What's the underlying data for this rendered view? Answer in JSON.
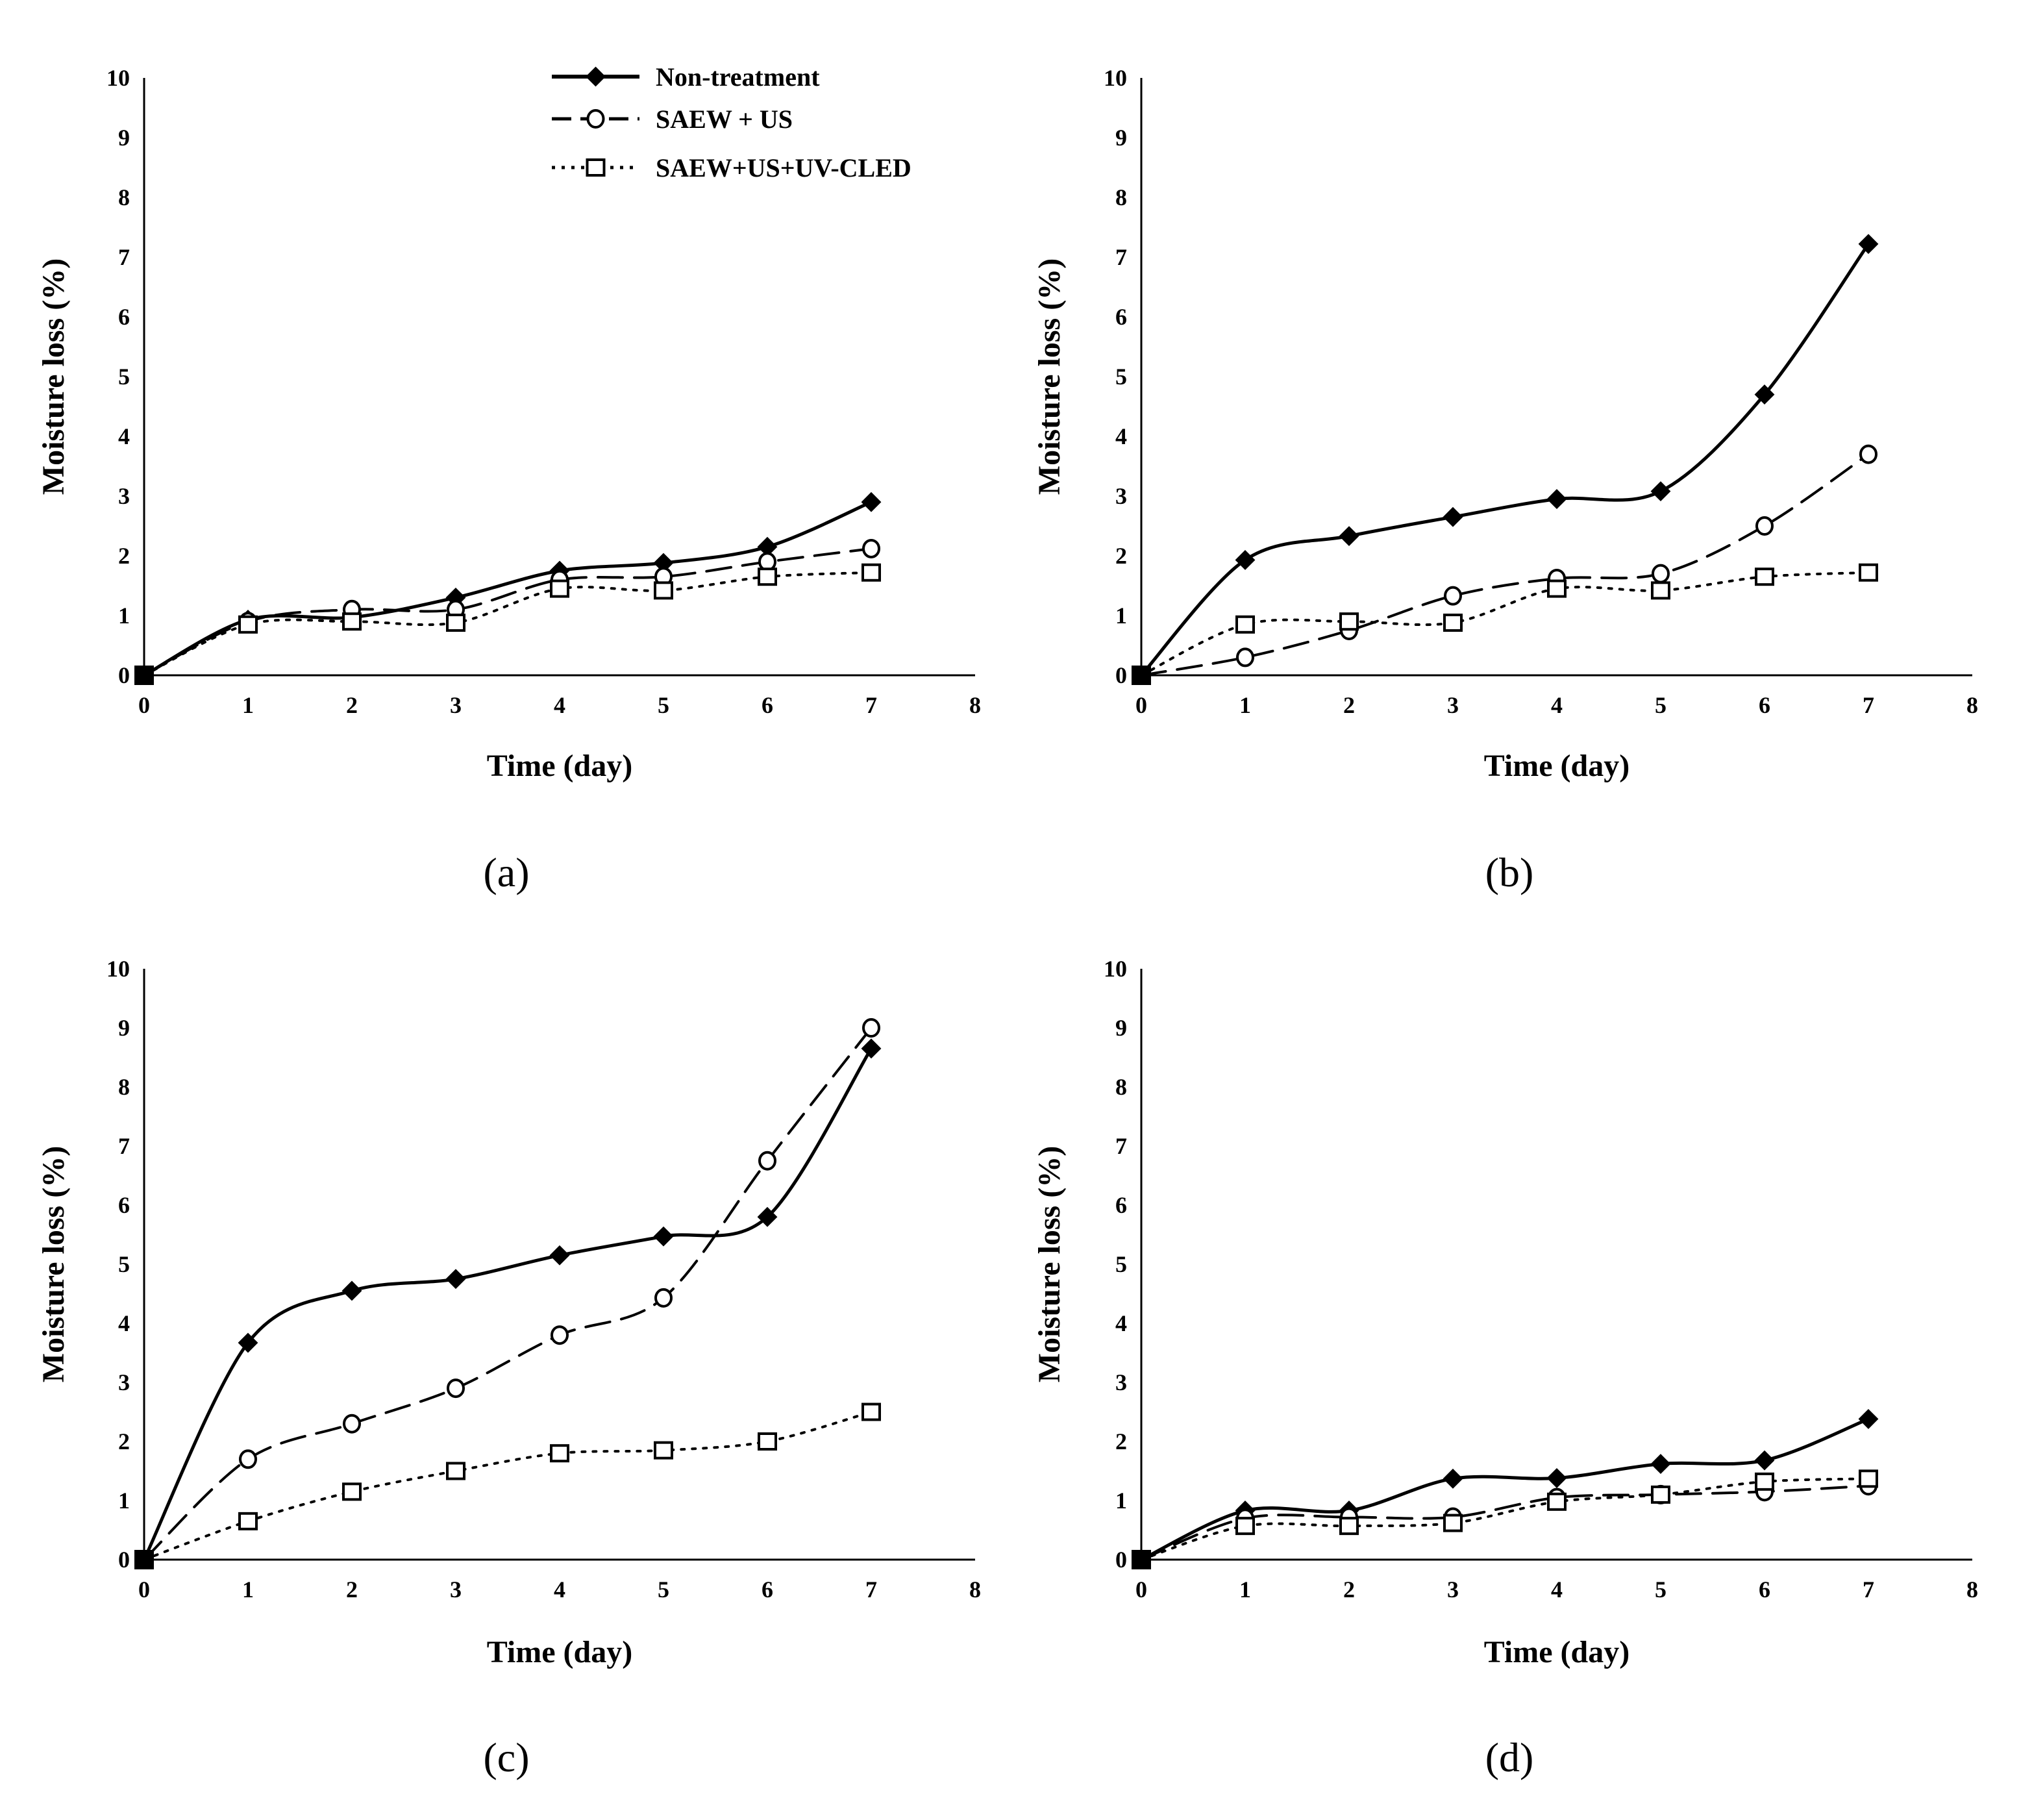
{
  "chart_data": [
    {
      "type": "line",
      "panel": "a",
      "title": "",
      "panel_label": "(a)",
      "xlabel": "Time (day)",
      "ylabel": "Moisture loss (%)",
      "xlim": [
        0,
        8
      ],
      "ylim": [
        0,
        10
      ],
      "xticks": [
        "0",
        "1",
        "2",
        "3",
        "4",
        "5",
        "6",
        "7",
        "8"
      ],
      "yticks": [
        "0",
        "1",
        "2",
        "3",
        "4",
        "5",
        "6",
        "7",
        "8",
        "9",
        "10"
      ],
      "x": [
        0,
        1,
        2,
        3,
        4,
        5,
        6,
        7
      ],
      "legend": "top-center",
      "series": [
        {
          "name": "Non-treatment",
          "values": [
            0,
            0.93,
            0.97,
            1.3,
            1.75,
            1.88,
            2.15,
            2.9
          ]
        },
        {
          "name": "SAEW + US",
          "values": [
            0,
            0.9,
            1.1,
            1.1,
            1.6,
            1.65,
            1.9,
            2.12
          ]
        },
        {
          "name": "SAEW+US+UV-CLED",
          "values": [
            0,
            0.85,
            0.9,
            0.88,
            1.45,
            1.42,
            1.65,
            1.72
          ]
        }
      ]
    },
    {
      "type": "line",
      "panel": "b",
      "title": "",
      "panel_label": "(b)",
      "xlabel": "Time (day)",
      "ylabel": "Moisture loss (%)",
      "xlim": [
        0,
        8
      ],
      "ylim": [
        0,
        10
      ],
      "xticks": [
        "0",
        "1",
        "2",
        "3",
        "4",
        "5",
        "6",
        "7",
        "8"
      ],
      "yticks": [
        "0",
        "1",
        "2",
        "3",
        "4",
        "5",
        "6",
        "7",
        "8",
        "9",
        "10"
      ],
      "x": [
        0,
        1,
        2,
        3,
        4,
        5,
        6,
        7
      ],
      "series": [
        {
          "name": "Non-treatment",
          "values": [
            0,
            1.93,
            2.33,
            2.65,
            2.95,
            3.08,
            4.7,
            7.22
          ]
        },
        {
          "name": "SAEW + US",
          "values": [
            0,
            0.3,
            0.75,
            1.33,
            1.62,
            1.7,
            2.5,
            3.7
          ]
        },
        {
          "name": "SAEW+US+UV-CLED",
          "values": [
            0,
            0.85,
            0.9,
            0.88,
            1.45,
            1.42,
            1.65,
            1.72
          ]
        }
      ]
    },
    {
      "type": "line",
      "panel": "c",
      "title": "",
      "panel_label": "(c)",
      "xlabel": "Time (day)",
      "ylabel": "Moisture loss (%)",
      "xlim": [
        0,
        8
      ],
      "ylim": [
        0,
        10
      ],
      "xticks": [
        "0",
        "1",
        "2",
        "3",
        "4",
        "5",
        "6",
        "7",
        "8"
      ],
      "yticks": [
        "0",
        "1",
        "2",
        "3",
        "4",
        "5",
        "6",
        "7",
        "8",
        "9",
        "10"
      ],
      "x": [
        0,
        1,
        2,
        3,
        4,
        5,
        6,
        7
      ],
      "series": [
        {
          "name": "Non-treatment",
          "values": [
            0,
            3.67,
            4.55,
            4.75,
            5.15,
            5.47,
            5.8,
            8.65
          ]
        },
        {
          "name": "SAEW + US",
          "values": [
            0,
            1.7,
            2.3,
            2.9,
            3.8,
            4.43,
            6.75,
            9.0
          ]
        },
        {
          "name": "SAEW+US+UV-CLED",
          "values": [
            0,
            0.65,
            1.15,
            1.5,
            1.8,
            1.85,
            2.0,
            2.5
          ]
        }
      ]
    },
    {
      "type": "line",
      "panel": "d",
      "title": "",
      "panel_label": "(d)",
      "xlabel": "Time (day)",
      "ylabel": "Moisture loss (%)",
      "xlim": [
        0,
        8
      ],
      "ylim": [
        0,
        10
      ],
      "xticks": [
        "0",
        "1",
        "2",
        "3",
        "4",
        "5",
        "6",
        "7",
        "8"
      ],
      "yticks": [
        "0",
        "1",
        "2",
        "3",
        "4",
        "5",
        "6",
        "7",
        "8",
        "9",
        "10"
      ],
      "x": [
        0,
        1,
        2,
        3,
        4,
        5,
        6,
        7
      ],
      "series": [
        {
          "name": "Non-treatment",
          "values": [
            0,
            0.83,
            0.83,
            1.37,
            1.38,
            1.62,
            1.68,
            2.38
          ]
        },
        {
          "name": "SAEW + US",
          "values": [
            0,
            0.7,
            0.72,
            0.72,
            1.05,
            1.1,
            1.15,
            1.25
          ]
        },
        {
          "name": "SAEW+US+UV-CLED",
          "values": [
            0,
            0.57,
            0.57,
            0.62,
            0.98,
            1.1,
            1.32,
            1.37
          ]
        }
      ]
    }
  ],
  "legend": {
    "items": [
      {
        "label": "Non-treatment",
        "marker": "diamond",
        "dash": "solid"
      },
      {
        "label": "SAEW + US",
        "marker": "circle",
        "dash": "dashed"
      },
      {
        "label": "SAEW+US+UV-CLED",
        "marker": "square",
        "dash": "dotted"
      }
    ]
  },
  "colors": {
    "ink": "#000000",
    "background": "#ffffff"
  }
}
